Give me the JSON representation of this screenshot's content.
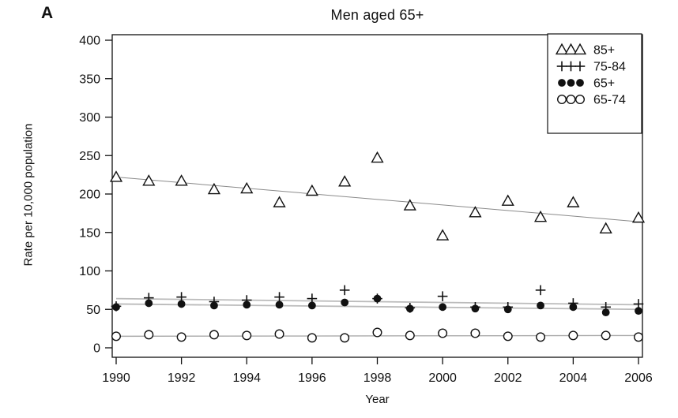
{
  "panel_label": "A",
  "title": "Men aged 65+",
  "x_axis_label": "Year",
  "y_axis_label": "Rate per 10,000 population",
  "colors": {
    "foreground": "#111111",
    "background": "#ffffff",
    "trend_dark": "#8a8a8a",
    "trend_light": "#bbbbbb"
  },
  "chart_data": {
    "type": "scatter",
    "title": "Men aged 65+",
    "xlabel": "Year",
    "ylabel": "Rate per 10,000 population",
    "xlim": [
      1990,
      2006
    ],
    "ylim": [
      0,
      400
    ],
    "x_ticks": [
      1990,
      1992,
      1994,
      1996,
      1998,
      2000,
      2002,
      2004,
      2006
    ],
    "y_ticks": [
      0,
      50,
      100,
      150,
      200,
      250,
      300,
      350,
      400
    ],
    "grid": false,
    "legend_position": "top-right",
    "x": [
      1990,
      1991,
      1992,
      1993,
      1994,
      1995,
      1996,
      1997,
      1998,
      1999,
      2000,
      2001,
      2002,
      2003,
      2004,
      2005,
      2006
    ],
    "series": [
      {
        "name": "85+",
        "marker": "triangle-open",
        "values": [
          222,
          217,
          217,
          206,
          207,
          189,
          204,
          216,
          247,
          185,
          146,
          176,
          191,
          170,
          189,
          155,
          169
        ],
        "trend_line": {
          "start": 222,
          "end": 164
        },
        "trend_color": "#8a8a8a",
        "trend_width": 1
      },
      {
        "name": "75-84",
        "marker": "plus",
        "values": [
          54,
          65,
          66,
          60,
          62,
          66,
          64,
          75,
          64,
          52,
          67,
          53,
          53,
          75,
          58,
          53,
          57
        ],
        "trend_line": {
          "start": 64,
          "end": 56
        },
        "trend_color": "#bbbbbb",
        "trend_width": 1.8
      },
      {
        "name": "65+",
        "marker": "circle-filled",
        "values": [
          53,
          58,
          57,
          55,
          56,
          56,
          55,
          59,
          64,
          51,
          53,
          51,
          50,
          55,
          53,
          46,
          48
        ],
        "trend_line": {
          "start": 57,
          "end": 50
        },
        "trend_color": "#bbbbbb",
        "trend_width": 1.8
      },
      {
        "name": "65-74",
        "marker": "circle-open",
        "values": [
          15,
          17,
          14,
          17,
          16,
          18,
          13,
          13,
          20,
          16,
          19,
          19,
          15,
          14,
          16,
          16,
          14
        ],
        "trend_line": {
          "start": 15,
          "end": 16
        },
        "trend_color": "#aaaaaa",
        "trend_width": 1.4
      }
    ]
  }
}
